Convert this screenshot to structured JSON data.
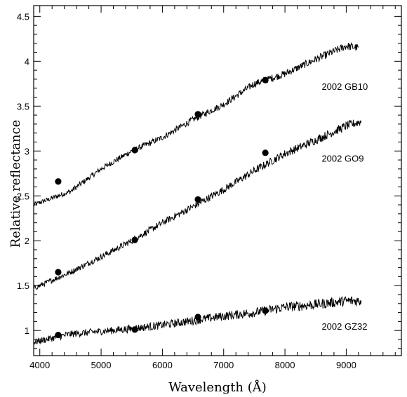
{
  "chart_data": {
    "type": "line",
    "xlabel": "Wavelength (Å)",
    "ylabel": "Relative reflectance",
    "xlim": [
      3900,
      9900
    ],
    "ylim": [
      0.72,
      4.62
    ],
    "xticks": [
      4000,
      5000,
      6000,
      7000,
      8000,
      9000
    ],
    "yticks": [
      1,
      1.5,
      2,
      2.5,
      3,
      3.5,
      4,
      4.5
    ],
    "xtick_labels": [
      "4000",
      "5000",
      "6000",
      "7000",
      "8000",
      "9000"
    ],
    "ytick_labels": [
      "1",
      "1.5",
      "2",
      "2.5",
      "3",
      "3.5",
      "4",
      "4.5"
    ],
    "grid": false,
    "legend": "none",
    "series": [
      {
        "name": "2002 GB10",
        "label_position": [
          8600,
          3.72
        ],
        "spectrum": [
          [
            3900,
            2.4
          ],
          [
            4500,
            2.55
          ],
          [
            5000,
            2.8
          ],
          [
            5500,
            3.0
          ],
          [
            6000,
            3.15
          ],
          [
            6500,
            3.35
          ],
          [
            7000,
            3.52
          ],
          [
            7500,
            3.75
          ],
          [
            8000,
            3.86
          ],
          [
            8500,
            4.02
          ],
          [
            9000,
            4.17
          ],
          [
            9200,
            4.15
          ]
        ],
        "noise_amp": 0.045,
        "photometry": [
          [
            4300,
            2.66
          ],
          [
            5550,
            3.01
          ],
          [
            6580,
            3.41
          ],
          [
            7680,
            3.79
          ]
        ]
      },
      {
        "name": "2002 GO9",
        "label_position": [
          8600,
          2.92
        ],
        "spectrum": [
          [
            3900,
            1.47
          ],
          [
            4500,
            1.65
          ],
          [
            5000,
            1.82
          ],
          [
            5500,
            2.0
          ],
          [
            6000,
            2.2
          ],
          [
            6500,
            2.38
          ],
          [
            7000,
            2.57
          ],
          [
            7500,
            2.78
          ],
          [
            8000,
            2.97
          ],
          [
            8500,
            3.12
          ],
          [
            9000,
            3.28
          ],
          [
            9250,
            3.33
          ]
        ],
        "noise_amp": 0.05,
        "photometry": [
          [
            4300,
            1.65
          ],
          [
            5550,
            2.01
          ],
          [
            6580,
            2.46
          ],
          [
            7680,
            2.98
          ]
        ]
      },
      {
        "name": "2002 GZ32",
        "label_position": [
          8600,
          1.05
        ],
        "spectrum": [
          [
            3900,
            0.87
          ],
          [
            4500,
            0.96
          ],
          [
            5000,
            0.99
          ],
          [
            5500,
            1.02
          ],
          [
            6000,
            1.06
          ],
          [
            6500,
            1.11
          ],
          [
            7000,
            1.16
          ],
          [
            7500,
            1.2
          ],
          [
            8000,
            1.26
          ],
          [
            8500,
            1.29
          ],
          [
            9000,
            1.33
          ],
          [
            9250,
            1.33
          ]
        ],
        "noise_amp": 0.06,
        "photometry": [
          [
            4300,
            0.95
          ],
          [
            5550,
            1.01
          ],
          [
            6580,
            1.15
          ],
          [
            7680,
            1.22
          ]
        ]
      }
    ]
  }
}
